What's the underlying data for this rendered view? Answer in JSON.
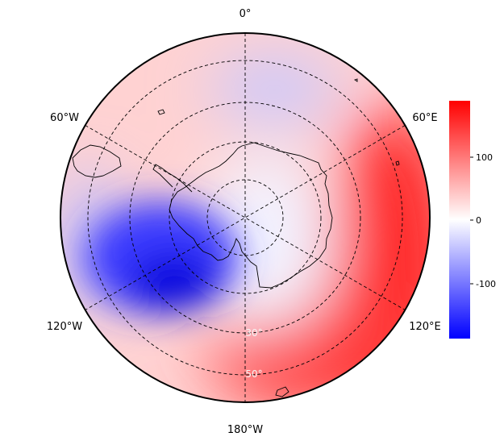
{
  "map": {
    "projection": "south-polar-stereographic",
    "longitude_labels": {
      "top": "0°",
      "upper_left": "60°W",
      "upper_right": "60°E",
      "lower_left": "120°W",
      "lower_right": "120°E",
      "bottom": "180°W"
    },
    "latitude_labels": [
      "30°",
      "50°"
    ],
    "gridlines": "dashed",
    "field_extremes": [
      {
        "lon_deg": -117,
        "lat_deg": -52,
        "value": -185
      },
      {
        "lon_deg": 10,
        "lat_deg": -30,
        "value": -55
      },
      {
        "lon_deg": 120,
        "lat_deg": -30,
        "value": 175
      },
      {
        "lon_deg": 150,
        "lat_deg": -45,
        "value": 120
      }
    ]
  },
  "colorbar": {
    "tick_labels": [
      "100",
      "0",
      "-100"
    ],
    "tick_values": [
      100,
      0,
      -100
    ],
    "range": [
      -185,
      185
    ],
    "colors": {
      "low": "#0000ff",
      "mid": "#ffffff",
      "high": "#ff0000"
    }
  }
}
